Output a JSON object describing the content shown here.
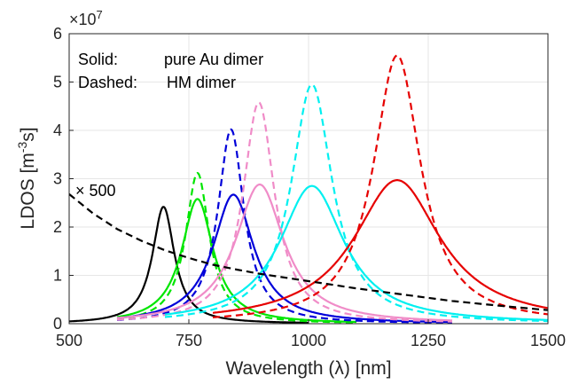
{
  "chart_data": {
    "type": "line",
    "xlabel": "Wavelength (λ) [nm]",
    "ylabel_main": "LDOS [m",
    "ylabel_sup": "-3",
    "ylabel_tail": "s]",
    "exponent_label": "×10",
    "exponent_sup": "7",
    "xlim": [
      500,
      1500
    ],
    "ylim": [
      0,
      6
    ],
    "y_multiplier": 10000000,
    "xticks": [
      500,
      750,
      1000,
      1250,
      1500
    ],
    "xtick_labels": [
      "500",
      "750",
      "1000",
      "1250",
      "1500"
    ],
    "yticks": [
      0,
      1,
      2,
      3,
      4,
      5,
      6
    ],
    "ytick_labels": [
      "0",
      "1",
      "2",
      "3",
      "4",
      "5",
      "6"
    ],
    "grid": true,
    "legend_line1_key": "Solid:",
    "legend_line1_value": "pure Au dimer",
    "legend_line2_key": "Dashed:",
    "legend_line2_value": "HM dimer",
    "scale_annotation": "× 500",
    "colors": {
      "black": "#000000",
      "green": "#00e600",
      "blue": "#0000d9",
      "pink": "#f08cc8",
      "cyan": "#00f0f0",
      "red": "#e60000",
      "grid": "#e6e6e6",
      "axis": "#262626"
    },
    "series": [
      {
        "color": "black",
        "style": "solid",
        "peak_x": 697,
        "peak_y": 2.42,
        "width": 28,
        "x_range": [
          500,
          1000
        ]
      },
      {
        "color": "green",
        "style": "solid",
        "peak_x": 768,
        "peak_y": 2.58,
        "width": 40,
        "x_range": [
          600,
          1100
        ]
      },
      {
        "color": "green",
        "style": "dashed",
        "peak_x": 768,
        "peak_y": 3.12,
        "width": 30,
        "x_range": [
          600,
          1100
        ]
      },
      {
        "color": "blue",
        "style": "solid",
        "peak_x": 843,
        "peak_y": 2.67,
        "width": 52,
        "x_range": [
          600,
          1300
        ]
      },
      {
        "color": "blue",
        "style": "dashed",
        "peak_x": 838,
        "peak_y": 4.02,
        "width": 33,
        "x_range": [
          600,
          1300
        ]
      },
      {
        "color": "pink",
        "style": "solid",
        "peak_x": 898,
        "peak_y": 2.88,
        "width": 62,
        "x_range": [
          600,
          1300
        ]
      },
      {
        "color": "pink",
        "style": "dashed",
        "peak_x": 896,
        "peak_y": 4.58,
        "width": 40,
        "x_range": [
          600,
          1300
        ]
      },
      {
        "color": "cyan",
        "style": "solid",
        "peak_x": 1007,
        "peak_y": 2.85,
        "width": 82,
        "x_range": [
          700,
          1500
        ]
      },
      {
        "color": "cyan",
        "style": "dashed",
        "peak_x": 1007,
        "peak_y": 4.95,
        "width": 52,
        "x_range": [
          700,
          1500
        ]
      },
      {
        "color": "red",
        "style": "solid",
        "peak_x": 1185,
        "peak_y": 2.97,
        "width": 110,
        "x_range": [
          800,
          1500
        ]
      },
      {
        "color": "red",
        "style": "dashed",
        "peak_x": 1185,
        "peak_y": 5.55,
        "width": 60,
        "x_range": [
          800,
          1500
        ]
      },
      {
        "color": "black",
        "style": "dashed",
        "label": "× 500",
        "x": [
          500,
          550,
          600,
          650,
          700,
          750,
          800,
          850,
          900,
          1000,
          1100,
          1200,
          1300,
          1400,
          1500
        ],
        "y": [
          2.68,
          2.28,
          1.96,
          1.72,
          1.52,
          1.36,
          1.22,
          1.12,
          1.03,
          0.88,
          0.73,
          0.6,
          0.47,
          0.37,
          0.28
        ]
      }
    ]
  }
}
